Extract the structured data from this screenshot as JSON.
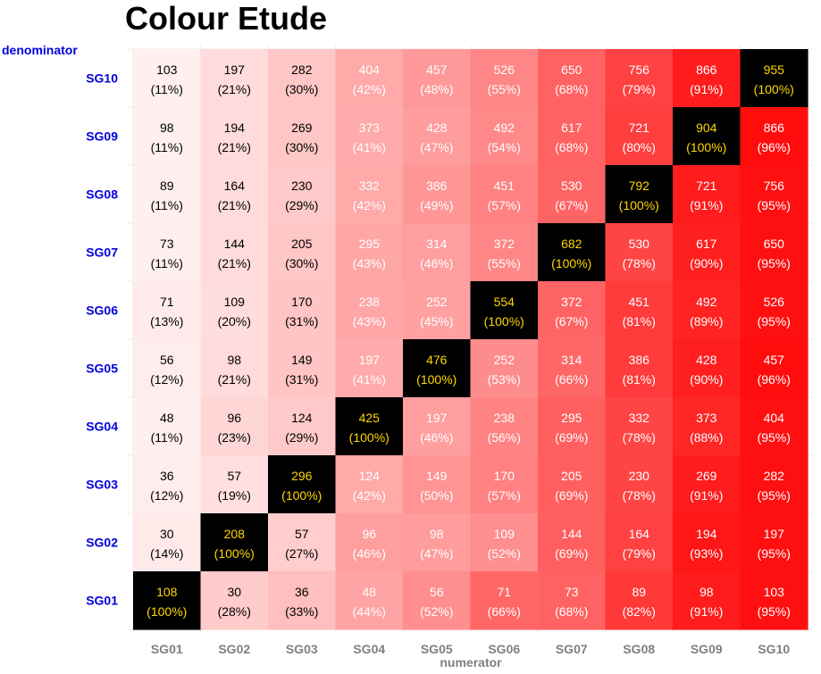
{
  "chart_data": {
    "type": "heatmap",
    "title": "Colour Etude",
    "xlabel": "numerator",
    "ylabel": "denominator",
    "x_categories": [
      "SG01",
      "SG02",
      "SG03",
      "SG04",
      "SG05",
      "SG06",
      "SG07",
      "SG08",
      "SG09",
      "SG10"
    ],
    "y_categories": [
      "SG01",
      "SG02",
      "SG03",
      "SG04",
      "SG05",
      "SG06",
      "SG07",
      "SG08",
      "SG09",
      "SG10"
    ],
    "colors": {
      "diagonal_fill": "#000000",
      "diagonal_text": "#ffd700",
      "low": "#ffffff",
      "high": "#ff0000",
      "dark_text": "#000000",
      "light_text": "#ffffff"
    },
    "cells": [
      {
        "row": "SG10",
        "values": [
          103,
          197,
          282,
          404,
          457,
          526,
          650,
          756,
          866,
          955
        ],
        "percents": [
          "11%",
          "21%",
          "30%",
          "42%",
          "48%",
          "55%",
          "68%",
          "79%",
          "91%",
          "100%"
        ]
      },
      {
        "row": "SG09",
        "values": [
          98,
          194,
          269,
          373,
          428,
          492,
          617,
          721,
          904,
          866
        ],
        "percents": [
          "11%",
          "21%",
          "30%",
          "41%",
          "47%",
          "54%",
          "68%",
          "80%",
          "100%",
          "96%"
        ]
      },
      {
        "row": "SG08",
        "values": [
          89,
          164,
          230,
          332,
          386,
          451,
          530,
          792,
          721,
          756
        ],
        "percents": [
          "11%",
          "21%",
          "29%",
          "42%",
          "49%",
          "57%",
          "67%",
          "100%",
          "91%",
          "95%"
        ]
      },
      {
        "row": "SG07",
        "values": [
          73,
          144,
          205,
          295,
          314,
          372,
          682,
          530,
          617,
          650
        ],
        "percents": [
          "11%",
          "21%",
          "30%",
          "43%",
          "46%",
          "55%",
          "100%",
          "78%",
          "90%",
          "95%"
        ]
      },
      {
        "row": "SG06",
        "values": [
          71,
          109,
          170,
          238,
          252,
          554,
          372,
          451,
          492,
          526
        ],
        "percents": [
          "13%",
          "20%",
          "31%",
          "43%",
          "45%",
          "100%",
          "67%",
          "81%",
          "89%",
          "95%"
        ]
      },
      {
        "row": "SG05",
        "values": [
          56,
          98,
          149,
          197,
          476,
          252,
          314,
          386,
          428,
          457
        ],
        "percents": [
          "12%",
          "21%",
          "31%",
          "41%",
          "100%",
          "53%",
          "66%",
          "81%",
          "90%",
          "96%"
        ]
      },
      {
        "row": "SG04",
        "values": [
          48,
          96,
          124,
          425,
          197,
          238,
          295,
          332,
          373,
          404
        ],
        "percents": [
          "11%",
          "23%",
          "29%",
          "100%",
          "46%",
          "56%",
          "69%",
          "78%",
          "88%",
          "95%"
        ]
      },
      {
        "row": "SG03",
        "values": [
          36,
          57,
          296,
          124,
          149,
          170,
          205,
          230,
          269,
          282
        ],
        "percents": [
          "12%",
          "19%",
          "100%",
          "42%",
          "50%",
          "57%",
          "69%",
          "78%",
          "91%",
          "95%"
        ]
      },
      {
        "row": "SG02",
        "values": [
          30,
          208,
          57,
          96,
          98,
          109,
          144,
          164,
          194,
          197
        ],
        "percents": [
          "14%",
          "100%",
          "27%",
          "46%",
          "47%",
          "52%",
          "69%",
          "79%",
          "93%",
          "95%"
        ]
      },
      {
        "row": "SG01",
        "values": [
          108,
          30,
          36,
          48,
          56,
          71,
          73,
          89,
          98,
          103
        ],
        "percents": [
          "100%",
          "28%",
          "33%",
          "44%",
          "52%",
          "66%",
          "68%",
          "82%",
          "91%",
          "95%"
        ]
      }
    ]
  }
}
